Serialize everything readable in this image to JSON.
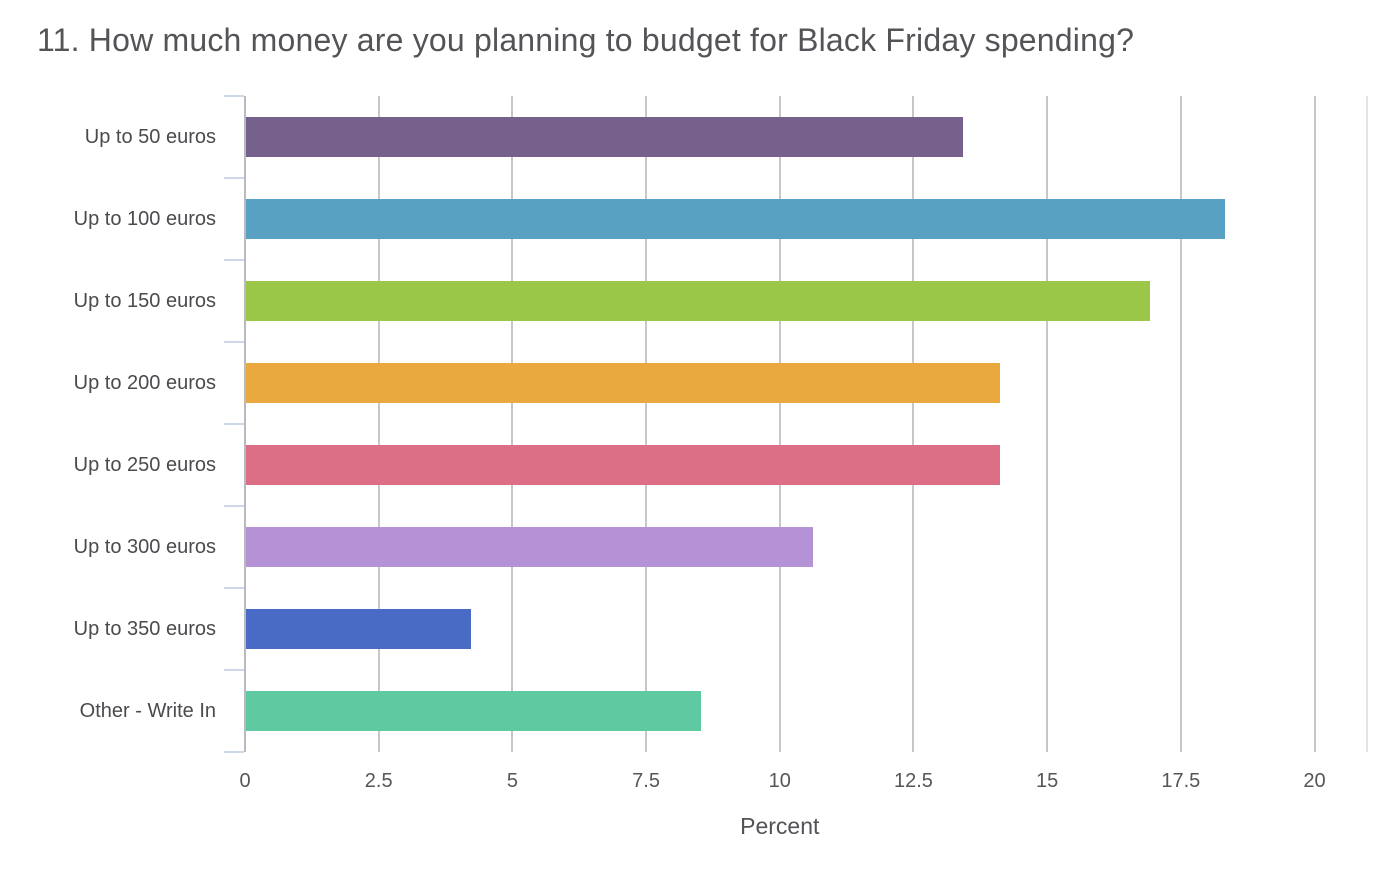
{
  "title": "11. How much money are you planning to budget for Black Friday spending?",
  "chart_data": {
    "type": "bar",
    "orientation": "horizontal",
    "title": "11. How much money are you planning to budget for Black Friday spending?",
    "categories": [
      "Up to 50 euros",
      "Up to 100 euros",
      "Up to 150 euros",
      "Up to 200 euros",
      "Up to 250 euros",
      "Up to 300 euros",
      "Up to 350 euros",
      "Other - Write In"
    ],
    "values": [
      13.4,
      18.3,
      16.9,
      14.1,
      14.1,
      10.6,
      4.2,
      8.5
    ],
    "bar_colors": [
      "#75618B",
      "#59A1C2",
      "#9AC748",
      "#E9A93E",
      "#DC6E85",
      "#B591D5",
      "#4A6BC5",
      "#5FC9A1"
    ],
    "xlabel": "Percent",
    "ylabel": "",
    "xticks": [
      0,
      2.5,
      5,
      7.5,
      10,
      12.5,
      15,
      17.5,
      20
    ],
    "xtick_labels": [
      "0",
      "2.5",
      "5",
      "7.5",
      "10",
      "12.5",
      "15",
      "17.5",
      "20"
    ],
    "xlim": [
      0,
      21
    ],
    "grid": "vertical-only",
    "legend": "none",
    "colors": {
      "gridline": "#c7c7c9",
      "plot_right_border": "#e4e4e6",
      "y_axis_line": "#b9babd",
      "y_tick": "#ccd7e9",
      "title_text": "#525457",
      "category_text": "#4a4b4e",
      "tick_text": "#55565a",
      "background": "#ffffff"
    }
  }
}
